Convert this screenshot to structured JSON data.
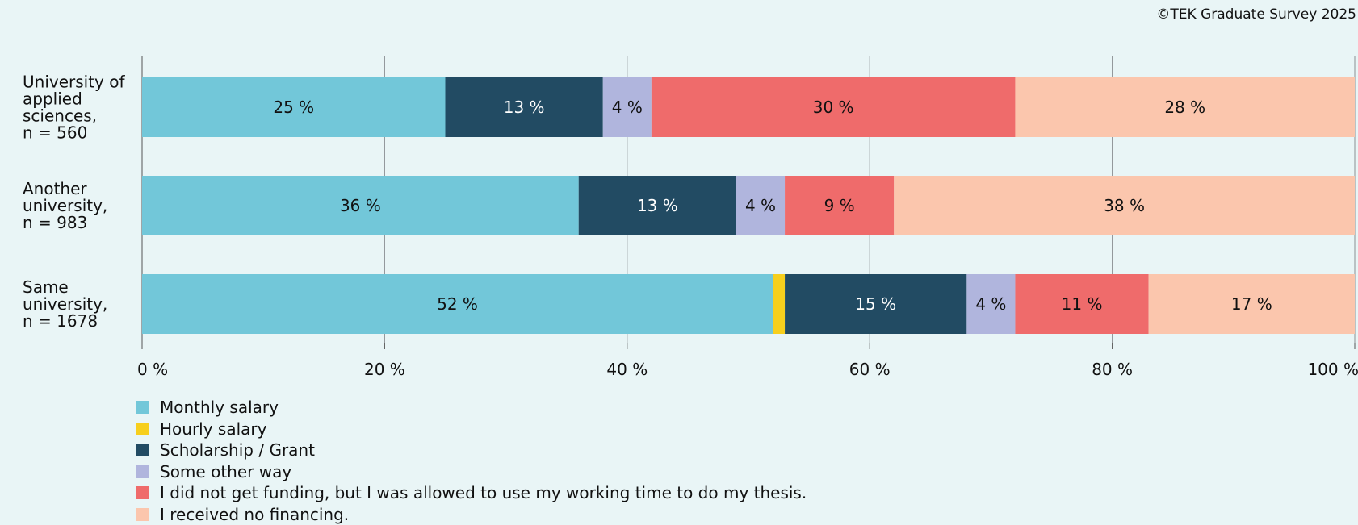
{
  "copyright": "©TEK Graduate Survey 2025",
  "chart_data": {
    "type": "bar",
    "orientation": "horizontal",
    "stacked": true,
    "categories": [
      [
        "University of",
        "applied",
        "sciences,",
        "n = 560"
      ],
      [
        "Another",
        "university,",
        "n = 983"
      ],
      [
        "Same",
        "university,",
        "n = 1678"
      ]
    ],
    "series": [
      {
        "name": "Monthly salary",
        "color": "#72c7d9",
        "label_color": "#111111",
        "values": [
          25,
          36,
          52
        ],
        "labels": [
          "25 %",
          "36 %",
          "52 %"
        ]
      },
      {
        "name": "Hourly salary",
        "color": "#f7cf1d",
        "label_color": "#111111",
        "values": [
          0,
          0,
          1
        ],
        "labels": [
          "",
          "",
          ""
        ]
      },
      {
        "name": "Scholarship / Grant",
        "color": "#224b63",
        "label_color": "#ffffff",
        "values": [
          13,
          13,
          15
        ],
        "labels": [
          "13 %",
          "13 %",
          "15 %"
        ]
      },
      {
        "name": "Some other way",
        "color": "#b0b5dd",
        "label_color": "#111111",
        "values": [
          4,
          4,
          4
        ],
        "labels": [
          "4 %",
          "4 %",
          "4 %"
        ]
      },
      {
        "name": "I did not get funding, but I was allowed to use my working time to do my thesis.",
        "color": "#ef6b6b",
        "label_color": "#111111",
        "values": [
          30,
          9,
          11
        ],
        "labels": [
          "30 %",
          "9 %",
          "11 %"
        ]
      },
      {
        "name": "I received no financing.",
        "color": "#fbc6ad",
        "label_color": "#111111",
        "values": [
          28,
          38,
          17
        ],
        "labels": [
          "28 %",
          "38 %",
          "17 %"
        ]
      }
    ],
    "x_ticks": [
      "0 %",
      "20 %",
      "40 %",
      "60 %",
      "80 %",
      "100 %"
    ],
    "xlim": [
      0,
      100
    ],
    "grid": true,
    "legend_position": "bottom-left",
    "title": "",
    "xlabel": "",
    "ylabel": ""
  }
}
